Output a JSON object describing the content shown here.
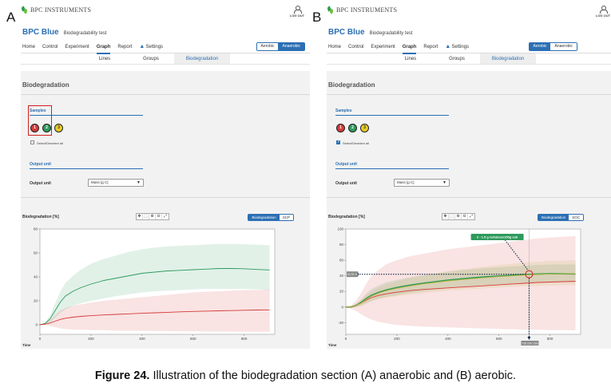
{
  "caption": {
    "label": "Figure 24.",
    "text": " Illustration of the biodegradation section (A) anaerobic and (B) aerobic."
  },
  "panels": [
    {
      "letter": "A",
      "brand": "BPC INSTRUMENTS",
      "logout_label": "LOG OUT",
      "app_title": "BPC Blue",
      "app_subtitle": "Biodegradability test",
      "nav": [
        "Home",
        "Control",
        "Experiment",
        "Graph",
        "Report",
        "Settings"
      ],
      "nav_active": 3,
      "mode_toggle": [
        "Aerobic",
        "Anaerobic"
      ],
      "mode_active": 1,
      "subtabs": [
        "Lines",
        "Groups",
        "Biodegradation"
      ],
      "subtab_active": 2,
      "section_title": "Biodegradation",
      "samples_title": "Samples",
      "samples": [
        {
          "label": "1",
          "color": "#d63a3a"
        },
        {
          "label": "2",
          "color": "#2e9a5c"
        },
        {
          "label": "3",
          "color": "#e6cc2a"
        }
      ],
      "select_all": {
        "label": "Select/Deselect all",
        "checked": false
      },
      "output_title": "Output unit",
      "output_label": "Output unit",
      "output_value": "Mass [g C]",
      "highlight_samples": true,
      "chart": {
        "y_title": "Biodegradation [%]",
        "x_title": "Time",
        "view_toggle": [
          "Biodegradation",
          "SCP"
        ],
        "view_active": 0,
        "tools": [
          "move-icon",
          "crop-icon",
          "zoom-in-icon",
          "zoom-out-icon",
          "reset-zoom-icon"
        ]
      },
      "chart_data": {
        "type": "line",
        "title": "",
        "xlabel": "Time",
        "ylabel": "Biodegradation [%]",
        "xlim": [
          0,
          920
        ],
        "ylim": [
          -8,
          80
        ],
        "xticks": [
          0,
          200,
          400,
          600,
          800
        ],
        "yticks": [
          0,
          20,
          40,
          60,
          80
        ],
        "grid": false,
        "series": [
          {
            "color": "#2e9a5c",
            "x": [
              0,
              20,
              40,
              60,
              80,
              100,
              130,
              160,
              200,
              250,
              300,
              350,
              400,
              450,
              500,
              550,
              600,
              650,
              700,
              750,
              800,
              850,
              900
            ],
            "y": [
              0,
              1,
              5,
              12,
              19,
              24,
              28,
              31,
              34,
              37,
              39,
              41,
              43,
              44,
              45,
              45.5,
              46,
              46.5,
              47,
              47,
              46.8,
              46.2,
              45.8
            ],
            "band_upper": [
              0,
              2,
              8,
              18,
              28,
              35,
              41,
              46,
              51,
              55,
              58,
              61,
              63,
              64.5,
              65.5,
              66,
              66.5,
              67,
              67.5,
              67.5,
              67.3,
              66.8,
              66.5
            ],
            "band_lower": [
              0,
              0,
              2,
              6,
              10,
              13,
              16,
              18,
              20,
              22,
              24,
              25.5,
              27,
              28,
              28.5,
              29,
              29.5,
              30,
              30,
              30,
              30,
              29.5,
              29
            ]
          },
          {
            "color": "#d63a3a",
            "x": [
              0,
              20,
              40,
              60,
              80,
              100,
              130,
              160,
              200,
              250,
              300,
              350,
              400,
              450,
              500,
              550,
              600,
              650,
              700,
              750,
              800,
              850,
              900
            ],
            "y": [
              0,
              0.5,
              1.5,
              3,
              4.5,
              5.5,
              6.3,
              7,
              7.6,
              8.2,
              8.7,
              9.1,
              9.6,
              10,
              10.4,
              10.8,
              11.1,
              11.4,
              11.7,
              11.9,
              12.1,
              12.3,
              12.5
            ],
            "band_upper": [
              0,
              1,
              4,
              8,
              12,
              14,
              16,
              17,
              18.5,
              20,
              21,
              22,
              23,
              24,
              25,
              26,
              27,
              27.5,
              28,
              28.5,
              29,
              29,
              29.5
            ],
            "band_lower": [
              0,
              0,
              -1,
              -2,
              -3,
              -3.5,
              -4,
              -4,
              -4.5,
              -4.5,
              -5,
              -5,
              -5,
              -5.2,
              -5.3,
              -5.5,
              -5.5,
              -5.6,
              -5.6,
              -5.7,
              -5.7,
              -5.8,
              -5.8
            ]
          }
        ]
      }
    },
    {
      "letter": "B",
      "brand": "BPC INSTRUMENTS",
      "logout_label": "LOG OUT",
      "app_title": "BPC Blue",
      "app_subtitle": "Biodegradability test",
      "nav": [
        "Home",
        "Control",
        "Experiment",
        "Graph",
        "Report",
        "Settings"
      ],
      "nav_active": 3,
      "mode_toggle": [
        "Aerobic",
        "Anaerobic"
      ],
      "mode_active": 0,
      "subtabs": [
        "Lines",
        "Groups",
        "Biodegradation"
      ],
      "subtab_active": 2,
      "section_title": "Biodegradation",
      "samples_title": "Samples",
      "samples": [
        {
          "label": "1",
          "color": "#d63a3a"
        },
        {
          "label": "2",
          "color": "#2e9a5c"
        },
        {
          "label": "3",
          "color": "#e6cc2a"
        }
      ],
      "select_all": {
        "label": "Select/Deselect all",
        "checked": true
      },
      "output_title": "Output unit",
      "output_label": "Output unit",
      "output_value": "Mass [g C]",
      "highlight_samples": false,
      "chart": {
        "y_title": "Biodegradation [%]",
        "x_title": "Time",
        "view_toggle": [
          "Biodegradation",
          "SOC"
        ],
        "view_active": 0,
        "tools": [
          "move-icon",
          "crop-icon",
          "zoom-in-icon",
          "zoom-out-icon",
          "reset-zoom-icon"
        ],
        "tooltip": "2 - 1.5 g cellulose/155g soil",
        "y_readout": "42.03 %",
        "x_readout": "718 22h 19m",
        "crosshair": {
          "x": 718,
          "y": 42.03
        }
      },
      "chart_data": {
        "type": "line",
        "title": "",
        "xlabel": "Time",
        "ylabel": "Biodegradation [%]",
        "xlim": [
          0,
          920
        ],
        "ylim": [
          -35,
          100
        ],
        "xticks": [
          0,
          200,
          400,
          600,
          800
        ],
        "yticks": [
          -20,
          0,
          20,
          40,
          60,
          80,
          100
        ],
        "grid": false,
        "series": [
          {
            "color": "#2e9a5c",
            "x": [
              0,
              20,
              40,
              60,
              80,
              100,
              130,
              160,
              200,
              250,
              300,
              350,
              400,
              450,
              500,
              550,
              600,
              650,
              700,
              750,
              800,
              850,
              900
            ],
            "y": [
              0,
              0,
              2,
              6,
              11,
              15,
              19,
              22,
              25,
              28,
              30.5,
              32.5,
              34.5,
              36,
              37.5,
              38.8,
              39.8,
              40.8,
              41.6,
              42.3,
              42.6,
              42.5,
              42.4
            ],
            "band_upper": [
              0,
              1,
              4,
              10,
              17,
              23,
              28,
              32,
              35,
              38,
              41,
              43,
              45,
              47,
              48.5,
              50,
              51,
              52,
              53,
              54,
              54.5,
              54.5,
              54.5
            ],
            "band_lower": [
              0,
              -1,
              0,
              2,
              5,
              8,
              11,
              13,
              15,
              18,
              20,
              22,
              24,
              25.5,
              27,
              28,
              29,
              30,
              31,
              31.5,
              32,
              32,
              32
            ]
          },
          {
            "color": "#d63a3a",
            "x": [
              0,
              20,
              40,
              60,
              80,
              100,
              130,
              160,
              200,
              250,
              300,
              350,
              400,
              450,
              500,
              550,
              600,
              650,
              700,
              750,
              800,
              850,
              900
            ],
            "y": [
              0,
              0,
              2,
              5,
              9,
              12,
              15,
              17,
              19,
              21,
              22.5,
              23.5,
              24.5,
              25.5,
              26.5,
              27.5,
              28.5,
              29.5,
              30.5,
              31.5,
              32,
              32.5,
              33
            ],
            "band_upper": [
              0,
              2,
              8,
              18,
              30,
              40,
              48,
              55,
              60,
              65,
              68,
              71,
              74,
              76,
              78,
              80,
              82,
              84,
              86,
              88,
              89,
              90,
              91
            ],
            "band_lower": [
              0,
              -2,
              -5,
              -9,
              -13,
              -16,
              -19,
              -21,
              -23,
              -24,
              -25,
              -25.5,
              -26,
              -26.5,
              -27,
              -27.5,
              -28,
              -28.5,
              -29,
              -29,
              -29.5,
              -29.5,
              -30
            ]
          },
          {
            "color": "#b8b43a",
            "x": [
              0,
              20,
              40,
              60,
              80,
              100,
              130,
              160,
              200,
              250,
              300,
              350,
              400,
              450,
              500,
              550,
              600,
              650,
              700,
              750,
              800,
              850,
              900
            ],
            "y": [
              0,
              0,
              2,
              5,
              10,
              14,
              18,
              21,
              24,
              27,
              29.5,
              31.5,
              33.5,
              35,
              36.5,
              37.8,
              39,
              40,
              41,
              41.8,
              42.3,
              42.5,
              42.7
            ],
            "band_upper": [
              0,
              1,
              4,
              9,
              15,
              20,
              25,
              29,
              33,
              37,
              40,
              43,
              46,
              48,
              50,
              52,
              54,
              55.5,
              57,
              58,
              59,
              59.5,
              60
            ],
            "band_lower": [
              0,
              -1,
              0,
              1,
              4,
              7,
              10,
              12,
              14,
              16,
              18,
              19.5,
              21,
              22,
              23,
              24,
              25,
              26,
              26.5,
              27,
              27.5,
              28,
              28
            ]
          }
        ]
      }
    }
  ]
}
